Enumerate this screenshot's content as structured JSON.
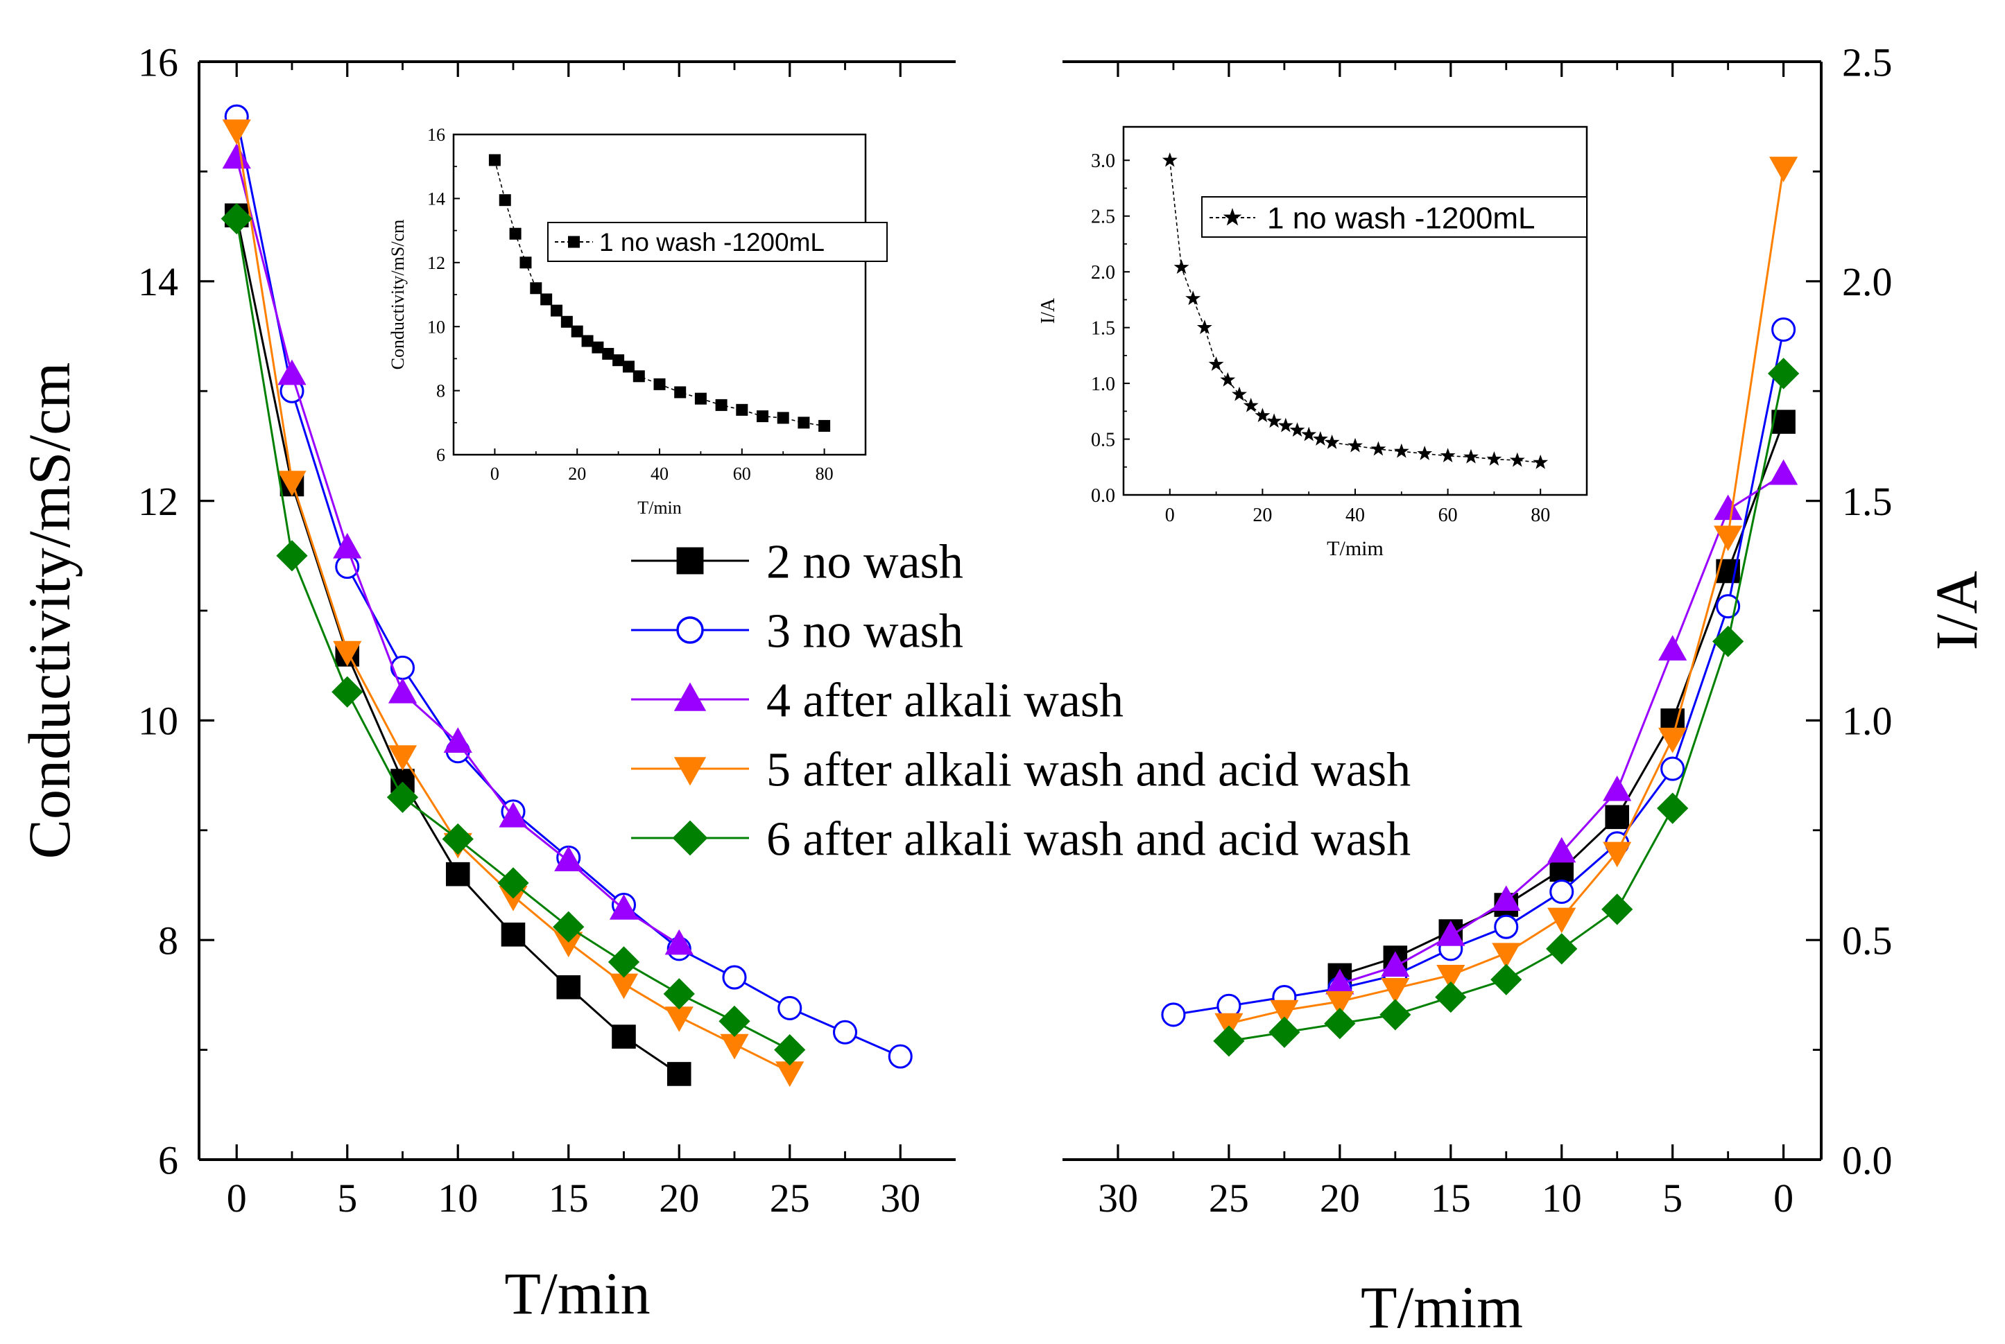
{
  "chart_data": [
    {
      "id": "left-main",
      "type": "line",
      "xlabel": "T/min",
      "ylabel": "Conductivity/mS/cm",
      "xlim": [
        -1.7,
        32.5
      ],
      "ylim": [
        6,
        16
      ],
      "xticks": [
        0,
        5,
        10,
        15,
        20,
        25,
        30
      ],
      "yticks": [
        6,
        8,
        10,
        12,
        14,
        16
      ],
      "legend": "center",
      "series": [
        {
          "name": "2 no wash",
          "color": "#000000",
          "marker": "square",
          "filled": true,
          "x": [
            0,
            2.5,
            5,
            7.5,
            10,
            12.5,
            15,
            17.5,
            20
          ],
          "y": [
            14.6,
            12.15,
            10.6,
            9.45,
            8.6,
            8.05,
            7.57,
            7.12,
            6.78
          ]
        },
        {
          "name": "3 no wash",
          "color": "#0000ff",
          "marker": "circle",
          "filled": false,
          "x": [
            0,
            2.5,
            5,
            7.5,
            10,
            12.5,
            15,
            17.5,
            20,
            22.5,
            25,
            27.5,
            30
          ],
          "y": [
            15.5,
            13.0,
            11.4,
            10.48,
            9.72,
            9.17,
            8.75,
            8.32,
            7.92,
            7.66,
            7.38,
            7.16,
            6.94
          ]
        },
        {
          "name": "4 after alkali wash",
          "color": "#9900ff",
          "marker": "triangle-up",
          "filled": true,
          "x": [
            0,
            2.5,
            5,
            7.5,
            10,
            12.5,
            15,
            17.5,
            20
          ],
          "y": [
            15.12,
            13.15,
            11.57,
            10.25,
            9.8,
            9.12,
            8.72,
            8.28,
            7.96
          ]
        },
        {
          "name": "5 after alkali wash and acid wash",
          "color": "#ff8000",
          "marker": "triangle-down",
          "filled": true,
          "x": [
            0,
            2.5,
            5,
            7.5,
            10,
            12.5,
            15,
            17.5,
            20,
            22.5,
            25
          ],
          "y": [
            15.38,
            12.18,
            10.63,
            9.68,
            8.88,
            8.4,
            7.98,
            7.6,
            7.3,
            7.05,
            6.8
          ]
        },
        {
          "name": "6 after alkali wash and acid wash",
          "color": "#008000",
          "marker": "diamond",
          "filled": true,
          "x": [
            0,
            2.5,
            5,
            7.5,
            10,
            12.5,
            15,
            17.5,
            20,
            22.5,
            25
          ],
          "y": [
            14.57,
            11.5,
            10.26,
            9.3,
            8.92,
            8.52,
            8.12,
            7.8,
            7.51,
            7.26,
            7.0
          ]
        }
      ]
    },
    {
      "id": "right-main",
      "type": "line",
      "xlabel": "T/mim",
      "ylabel": "I/A",
      "xlim": [
        32.5,
        -1.7
      ],
      "ylim": [
        0,
        2.5
      ],
      "xticks": [
        30,
        25,
        20,
        15,
        10,
        5,
        0
      ],
      "yticks": [
        0.0,
        0.5,
        1.0,
        1.5,
        2.0,
        2.5
      ],
      "series": [
        {
          "name": "2 no wash",
          "color": "#000000",
          "marker": "square",
          "filled": true,
          "x": [
            20,
            17.5,
            15,
            12.5,
            10,
            7.5,
            5,
            2.5,
            0
          ],
          "y": [
            0.42,
            0.46,
            0.52,
            0.58,
            0.66,
            0.78,
            1.0,
            1.34,
            1.68
          ]
        },
        {
          "name": "3 no wash",
          "color": "#0000ff",
          "marker": "circle",
          "filled": false,
          "x": [
            27.5,
            25,
            22.5,
            20,
            17.5,
            15,
            12.5,
            10,
            7.5,
            5,
            2.5,
            0
          ],
          "y": [
            0.33,
            0.35,
            0.37,
            0.39,
            0.42,
            0.48,
            0.53,
            0.61,
            0.72,
            0.89,
            1.26,
            1.89
          ]
        },
        {
          "name": "4 after alkali wash",
          "color": "#9900ff",
          "marker": "triangle-up",
          "filled": true,
          "x": [
            20,
            17.5,
            15,
            12.5,
            10,
            7.5,
            5,
            2.5,
            0
          ],
          "y": [
            0.4,
            0.44,
            0.51,
            0.59,
            0.7,
            0.84,
            1.16,
            1.48,
            1.56
          ]
        },
        {
          "name": "5 after alkali wash and acid wash",
          "color": "#ff8000",
          "marker": "triangle-down",
          "filled": true,
          "x": [
            25,
            22.5,
            20,
            17.5,
            15,
            12.5,
            10,
            7.5,
            5,
            2.5,
            0
          ],
          "y": [
            0.31,
            0.34,
            0.36,
            0.39,
            0.42,
            0.47,
            0.55,
            0.7,
            0.96,
            1.42,
            2.26
          ]
        },
        {
          "name": "6 after alkali wash and acid wash",
          "color": "#008000",
          "marker": "diamond",
          "filled": true,
          "x": [
            25,
            22.5,
            20,
            17.5,
            15,
            12.5,
            10,
            7.5,
            5,
            2.5,
            0
          ],
          "y": [
            0.27,
            0.29,
            0.31,
            0.33,
            0.37,
            0.41,
            0.48,
            0.57,
            0.8,
            1.18,
            1.79
          ]
        }
      ]
    },
    {
      "id": "left-inset",
      "type": "line",
      "xlabel": "T/min",
      "ylabel": "Conductivity/mS/cm",
      "xlim": [
        -10,
        90
      ],
      "ylim": [
        6,
        16
      ],
      "xticks": [
        0,
        20,
        40,
        60,
        80
      ],
      "yticks": [
        6,
        8,
        10,
        12,
        14,
        16
      ],
      "legend": "top-right",
      "series": [
        {
          "name": "1 no wash -1200mL",
          "color": "#000000",
          "marker": "square",
          "filled": true,
          "x": [
            0,
            2.5,
            5,
            7.5,
            10,
            12.5,
            15,
            17.5,
            20,
            22.5,
            25,
            27.5,
            30,
            32.5,
            35,
            40,
            45,
            50,
            55,
            60,
            65,
            70,
            75,
            80
          ],
          "y": [
            15.2,
            13.95,
            12.9,
            12.0,
            11.2,
            10.85,
            10.5,
            10.15,
            9.85,
            9.55,
            9.35,
            9.15,
            8.95,
            8.75,
            8.45,
            8.2,
            7.95,
            7.75,
            7.55,
            7.4,
            7.2,
            7.15,
            7.0,
            6.9
          ]
        }
      ]
    },
    {
      "id": "right-inset",
      "type": "line",
      "xlabel": "T/mim",
      "ylabel": "I/A",
      "xlim": [
        -10,
        90
      ],
      "ylim": [
        0,
        3.3
      ],
      "xticks": [
        0,
        20,
        40,
        60,
        80
      ],
      "yticks": [
        0.0,
        0.5,
        1.0,
        1.5,
        2.0,
        2.5,
        3.0
      ],
      "legend": "top-right",
      "series": [
        {
          "name": "1 no wash -1200mL",
          "color": "#000000",
          "marker": "star",
          "filled": true,
          "x": [
            0,
            2.5,
            5,
            7.5,
            10,
            12.5,
            15,
            17.5,
            20,
            22.5,
            25,
            27.5,
            30,
            32.5,
            35,
            40,
            45,
            50,
            55,
            60,
            65,
            70,
            75,
            80
          ],
          "y": [
            3.0,
            2.04,
            1.76,
            1.5,
            1.17,
            1.03,
            0.9,
            0.8,
            0.71,
            0.66,
            0.62,
            0.58,
            0.54,
            0.5,
            0.47,
            0.44,
            0.41,
            0.39,
            0.37,
            0.35,
            0.34,
            0.32,
            0.31,
            0.29
          ]
        }
      ]
    }
  ]
}
